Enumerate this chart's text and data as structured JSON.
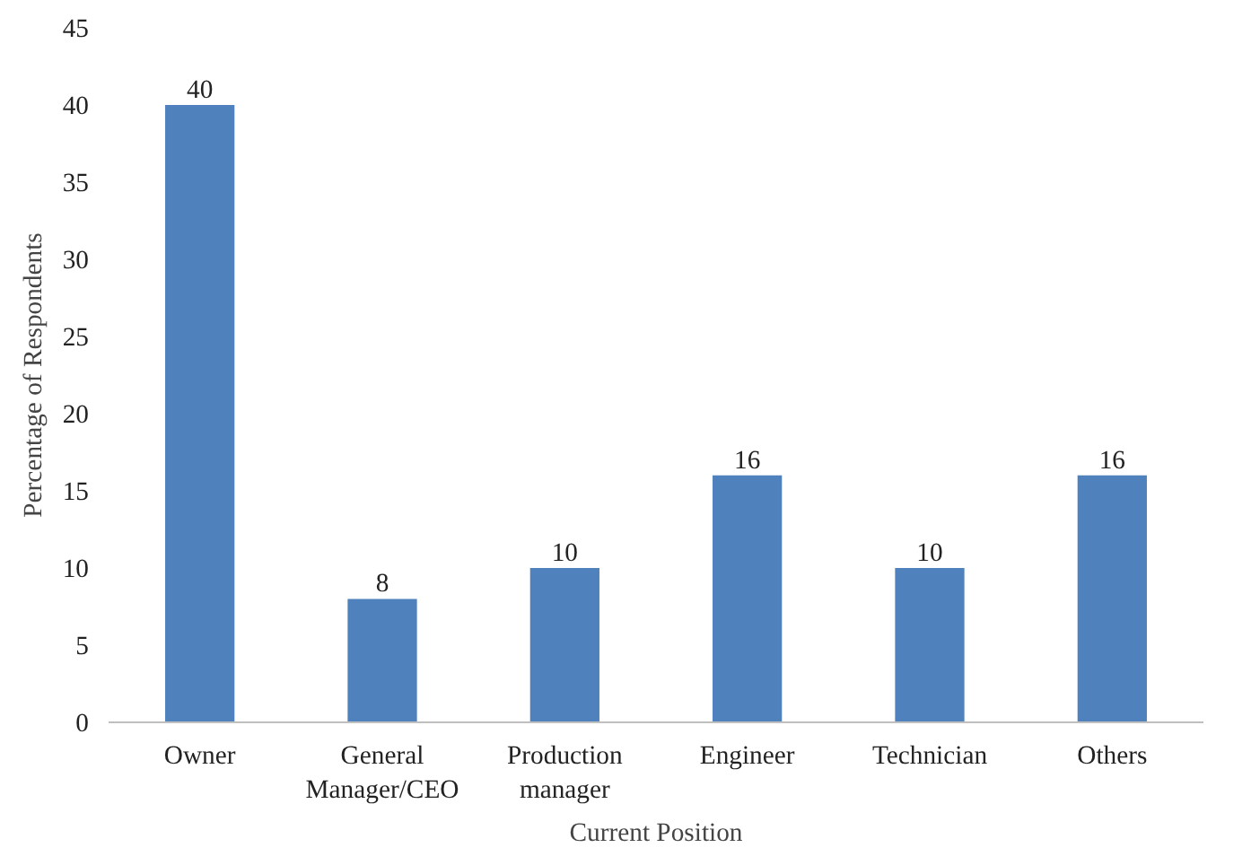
{
  "chart_data": {
    "type": "bar",
    "xlabel": "Current Position",
    "ylabel": "Percentage of Respondents",
    "categories": [
      "Owner",
      "General\nManager/CEO",
      "Production\nmanager",
      "Engineer",
      "Technician",
      "Others"
    ],
    "values": [
      40,
      8,
      10,
      16,
      10,
      16
    ],
    "color": "#4f81bd",
    "ylim": [
      0,
      45
    ],
    "yticks": [
      0,
      5,
      10,
      15,
      20,
      25,
      30,
      35,
      40,
      45
    ],
    "data_labels": true,
    "grid": false
  }
}
